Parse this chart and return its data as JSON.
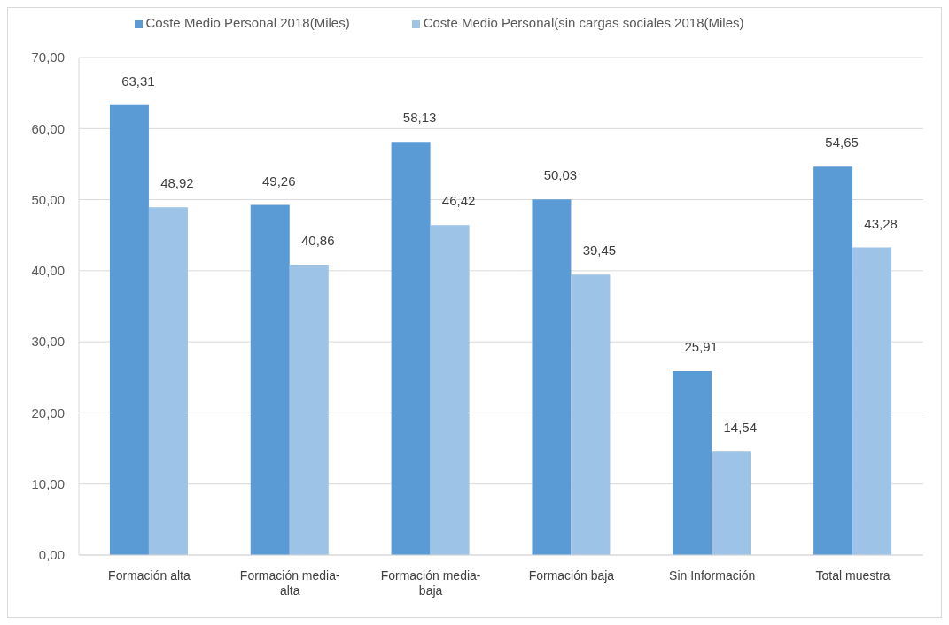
{
  "chart_data": {
    "type": "bar",
    "categories": [
      "Formación alta",
      "Formación media-alta",
      "Formación media-baja",
      "Formación baja",
      "Sin Información",
      "Total muestra"
    ],
    "series": [
      {
        "name": "Coste Medio Personal 2018(Miles)",
        "color": "#5b9bd5",
        "values": [
          63.31,
          49.26,
          58.13,
          50.03,
          25.91,
          54.65
        ],
        "value_labels": [
          "63,31",
          "49,26",
          "58,13",
          "50,03",
          "25,91",
          "54,65"
        ]
      },
      {
        "name": "Coste Medio Personal(sin cargas sociales 2018(Miles)",
        "color": "#9dc3e6",
        "values": [
          48.92,
          40.86,
          46.42,
          39.45,
          14.54,
          43.28
        ],
        "value_labels": [
          "48,92",
          "40,86",
          "46,42",
          "39,45",
          "14,54",
          "43,28"
        ]
      }
    ],
    "ylim": [
      0,
      70
    ],
    "yticks": [
      {
        "value": 0,
        "label": "0,00"
      },
      {
        "value": 10,
        "label": "10,00"
      },
      {
        "value": 20,
        "label": "20,00"
      },
      {
        "value": 30,
        "label": "30,00"
      },
      {
        "value": 40,
        "label": "40,00"
      },
      {
        "value": 50,
        "label": "50,00"
      },
      {
        "value": 60,
        "label": "60,00"
      },
      {
        "value": 70,
        "label": "70,00"
      }
    ],
    "grid": "y",
    "legend": "top"
  }
}
